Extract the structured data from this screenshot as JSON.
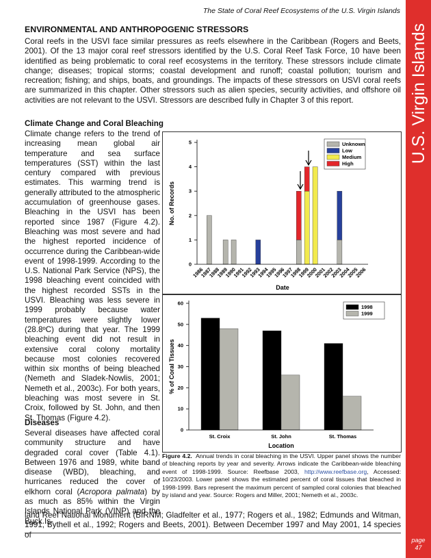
{
  "header": {
    "running_title": "The State of Coral Reef Ecosystems of the U.S. Virgin Islands",
    "sidebar_title": "U.S. Virgin Islands",
    "page_label": "page",
    "page_number": 47
  },
  "section": {
    "heading": "ENVIRONMENTAL AND ANTHROPOGENIC STRESSORS",
    "intro": "Coral reefs in the USVI face similar pressures as reefs elsewhere in the Caribbean (Rogers and Beets, 2001). Of the 13 major coral reef stressors identified by the U.S. Coral Reef Task Force, 10 have been identified as being problematic to coral reef ecosystems in the territory. These stressors include climate change; diseases; tropical storms; coastal development and runoff; coastal pollution; tourism and recreation; fishing; and ships, boats, and groundings. The impacts of these stressors on USVI coral reefs are summarized in this chapter. Other stressors such as alien species, security activities, and offshore oil activities are not relevant to the USVI. Stressors are described fully in Chapter 3 of this report."
  },
  "climate": {
    "heading": "Climate Change and Coral Bleaching",
    "text": "Climate change refers to the trend of increasing mean global air temperature and sea surface temperatures (SST) within the last century compared with previous estimates. This warming trend is generally attributed to the atmospheric accumulation of greenhouse gases. Bleaching in the USVI has been reported since 1987 (Figure 4.2). Bleaching was most severe and had the highest reported incidence of occurrence during the Caribbean-wide event of 1998-1999. According to the U.S. National Park Service (NPS), the 1998 bleaching event coincided with the highest recorded SSTs in the USVI. Bleaching was less severe in 1999 probably because water temperatures were slightly lower (28.8ºC) during that year. The 1999 bleaching event did not result in extensive coral colony mortality because most colonies recovered within six months of being bleached (Nemeth and Sladek-Nowlis, 2001; Nemeth et al., 2003c). For both years, bleaching was most severe in St. Croix, followed by St. John, and then St. Thomas (Figure 4.2)."
  },
  "diseases": {
    "heading": "Diseases",
    "column_parts": [
      "Several diseases have affected coral community structure and have degraded coral cover (Table 4.1). Between 1976 and 1989, white band disease (WBD), bleaching, and hurricanes reduced the cover of elkhorn coral (",
      "Acropora palmata",
      ") by as much as 85% within the Virgin Islands National Park (VINP) and the Buck Is-"
    ],
    "full_width": "land Reef National Monument (BIRNM; Gladfelter et al., 1977; Rogers et al., 1982; Edmunds and Witman, 1991; Bythell et al., 1992; Rogers and Beets, 2001). Between December 1997 and May 2001, 14 species of"
  },
  "figure": {
    "caption_label": "Figure 4.2.",
    "caption_parts": [
      "Annual trends in coral bleaching in the USVI. Upper panel shows the number of bleaching reports by year and severity. Arrows indicate the Caribbean-wide bleaching event of 1998-1999. Source: Reefbase 2003, ",
      "http://www.reefbase.org",
      ", Accessed: 10/23/2003. Lower panel shows the estimated percent of coral tissues that bleached in 1998-1999. Bars represent the maximum percent of sampled coral colonies that bleached by island and year. Source: Rogers and Miller, 2001; Nemeth et al., 2003c."
    ]
  },
  "chart_data": [
    {
      "type": "bar",
      "stacked": true,
      "xlabel": "Date",
      "ylabel": "No. of Records",
      "categories": [
        "1986",
        "1987",
        "1988",
        "1989",
        "1990",
        "1991",
        "1992",
        "1993",
        "1994",
        "1995",
        "1996",
        "1997",
        "1998",
        "1999",
        "2000",
        "2001",
        "2002",
        "2003",
        "2004",
        "2005",
        "2006"
      ],
      "series": [
        {
          "name": "Unknown",
          "color": "#b5b5ad",
          "values": [
            0,
            2,
            0,
            1,
            1,
            0,
            0,
            0,
            0,
            0,
            0,
            0,
            1,
            0,
            0,
            0,
            0,
            1,
            0,
            0,
            0
          ]
        },
        {
          "name": "Low",
          "color": "#27409b",
          "values": [
            0,
            0,
            0,
            0,
            0,
            0,
            0,
            1,
            0,
            0,
            0,
            0,
            0,
            0,
            0,
            0,
            0,
            2,
            0,
            0,
            0
          ]
        },
        {
          "name": "Medium",
          "color": "#f2ea4e",
          "values": [
            0,
            0,
            0,
            0,
            0,
            0,
            0,
            0,
            0,
            0,
            0,
            0,
            0,
            3,
            4,
            0,
            0,
            0,
            0,
            0,
            0
          ]
        },
        {
          "name": "High",
          "color": "#e3262b",
          "values": [
            0,
            0,
            0,
            0,
            0,
            0,
            0,
            0,
            0,
            0,
            0,
            0,
            2,
            1,
            0,
            0,
            0,
            0,
            0,
            0,
            0
          ]
        }
      ],
      "ylim": [
        0,
        5
      ],
      "yticks": [
        0,
        1,
        2,
        3,
        4,
        5
      ],
      "legend": "upper right"
    },
    {
      "type": "bar",
      "stacked": false,
      "xlabel": "Location",
      "ylabel": "% of Coral Tissues",
      "categories": [
        "St. Croix",
        "St. John",
        "St. Thomas"
      ],
      "series": [
        {
          "name": "1998",
          "color": "#000000",
          "values": [
            53,
            47,
            41
          ]
        },
        {
          "name": "1999",
          "color": "#b5b5ad",
          "values": [
            48,
            26,
            16
          ]
        }
      ],
      "ylim": [
        0,
        60
      ],
      "yticks": [
        0,
        10,
        20,
        30,
        40,
        50,
        60
      ],
      "legend": "upper right"
    }
  ]
}
